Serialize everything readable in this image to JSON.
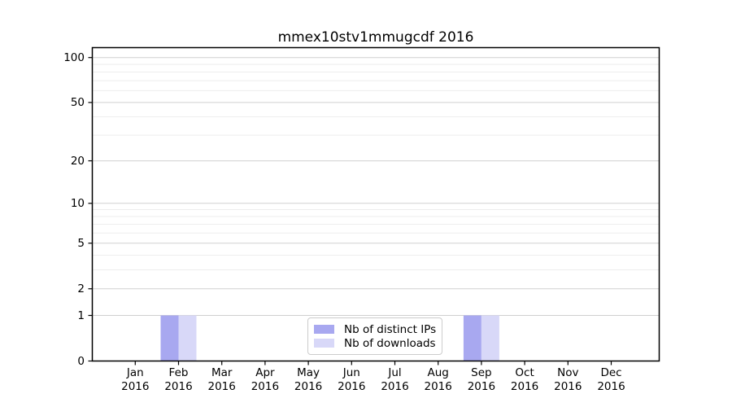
{
  "chart_data": {
    "type": "bar",
    "title": "mmex10stv1mmugcdf 2016",
    "year_label": "2016",
    "categories": [
      "Jan",
      "Feb",
      "Mar",
      "Apr",
      "May",
      "Jun",
      "Jul",
      "Aug",
      "Sep",
      "Oct",
      "Nov",
      "Dec"
    ],
    "series": [
      {
        "name": "Nb of distinct IPs",
        "color": "#a8a8f0",
        "values": [
          0,
          1,
          0,
          0,
          0,
          0,
          0,
          0,
          1,
          0,
          0,
          0
        ]
      },
      {
        "name": "Nb of downloads",
        "color": "#d8d8f8",
        "values": [
          0,
          1,
          0,
          0,
          0,
          0,
          0,
          0,
          1,
          0,
          0,
          0
        ]
      }
    ],
    "y_axis": {
      "scale": "log10(1+y)",
      "ticks": [
        0,
        1,
        2,
        5,
        10,
        20,
        50,
        100
      ],
      "minor_gridlines": [
        3,
        4,
        6,
        7,
        8,
        9,
        30,
        40,
        60,
        70,
        80,
        90
      ],
      "ylim": [
        0,
        116
      ]
    },
    "legend_position": "lower center",
    "grid": true,
    "colors": {
      "spine": "#000000",
      "major_grid": "#d0d0d0",
      "minor_grid": "#ededed",
      "text": "#000000",
      "background": "#ffffff"
    }
  }
}
